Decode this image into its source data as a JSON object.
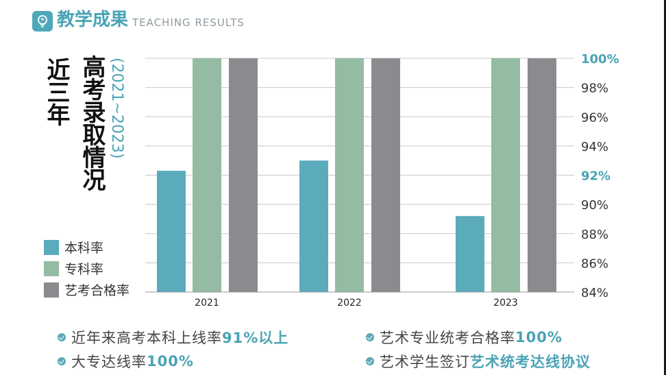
{
  "header": {
    "title_cn": "教学成果",
    "title_en": "TEACHING RESULTS",
    "icon": "lightbulb-icon"
  },
  "side_title": {
    "line1": "近三年",
    "line2": "高考录取情况",
    "years": "(2021~2023)"
  },
  "colors": {
    "accent": "#4aa3b5",
    "series_benke": "#5aabbc",
    "series_zhuanke": "#93bca3",
    "series_yikao": "#8a8b8f"
  },
  "chart_data": {
    "type": "bar",
    "categories": [
      "2021",
      "2022",
      "2023"
    ],
    "series": [
      {
        "name": "本科率",
        "values": [
          92.3,
          93.0,
          89.2
        ]
      },
      {
        "name": "专科率",
        "values": [
          100,
          100,
          100
        ]
      },
      {
        "name": "艺考合格率",
        "values": [
          100,
          100,
          100
        ]
      }
    ],
    "ylim": [
      84,
      100
    ],
    "y_ticks": [
      "84%",
      "86%",
      "88%",
      "90%",
      "92%",
      "94%",
      "96%",
      "98%",
      "100%"
    ],
    "y_highlighted_ticks": [
      "92%",
      "100%"
    ],
    "y_axis_position": "right",
    "grid": true,
    "legend_position": "bottom-left"
  },
  "bullets": [
    {
      "text": "近年来高考本科上线率",
      "highlight": "91%以上"
    },
    {
      "text": "艺术专业统考合格率",
      "highlight": "100%"
    },
    {
      "text": "大专达线率",
      "highlight": "100%"
    },
    {
      "text": "艺术学生签订",
      "highlight": "艺术统考达线协议"
    }
  ]
}
